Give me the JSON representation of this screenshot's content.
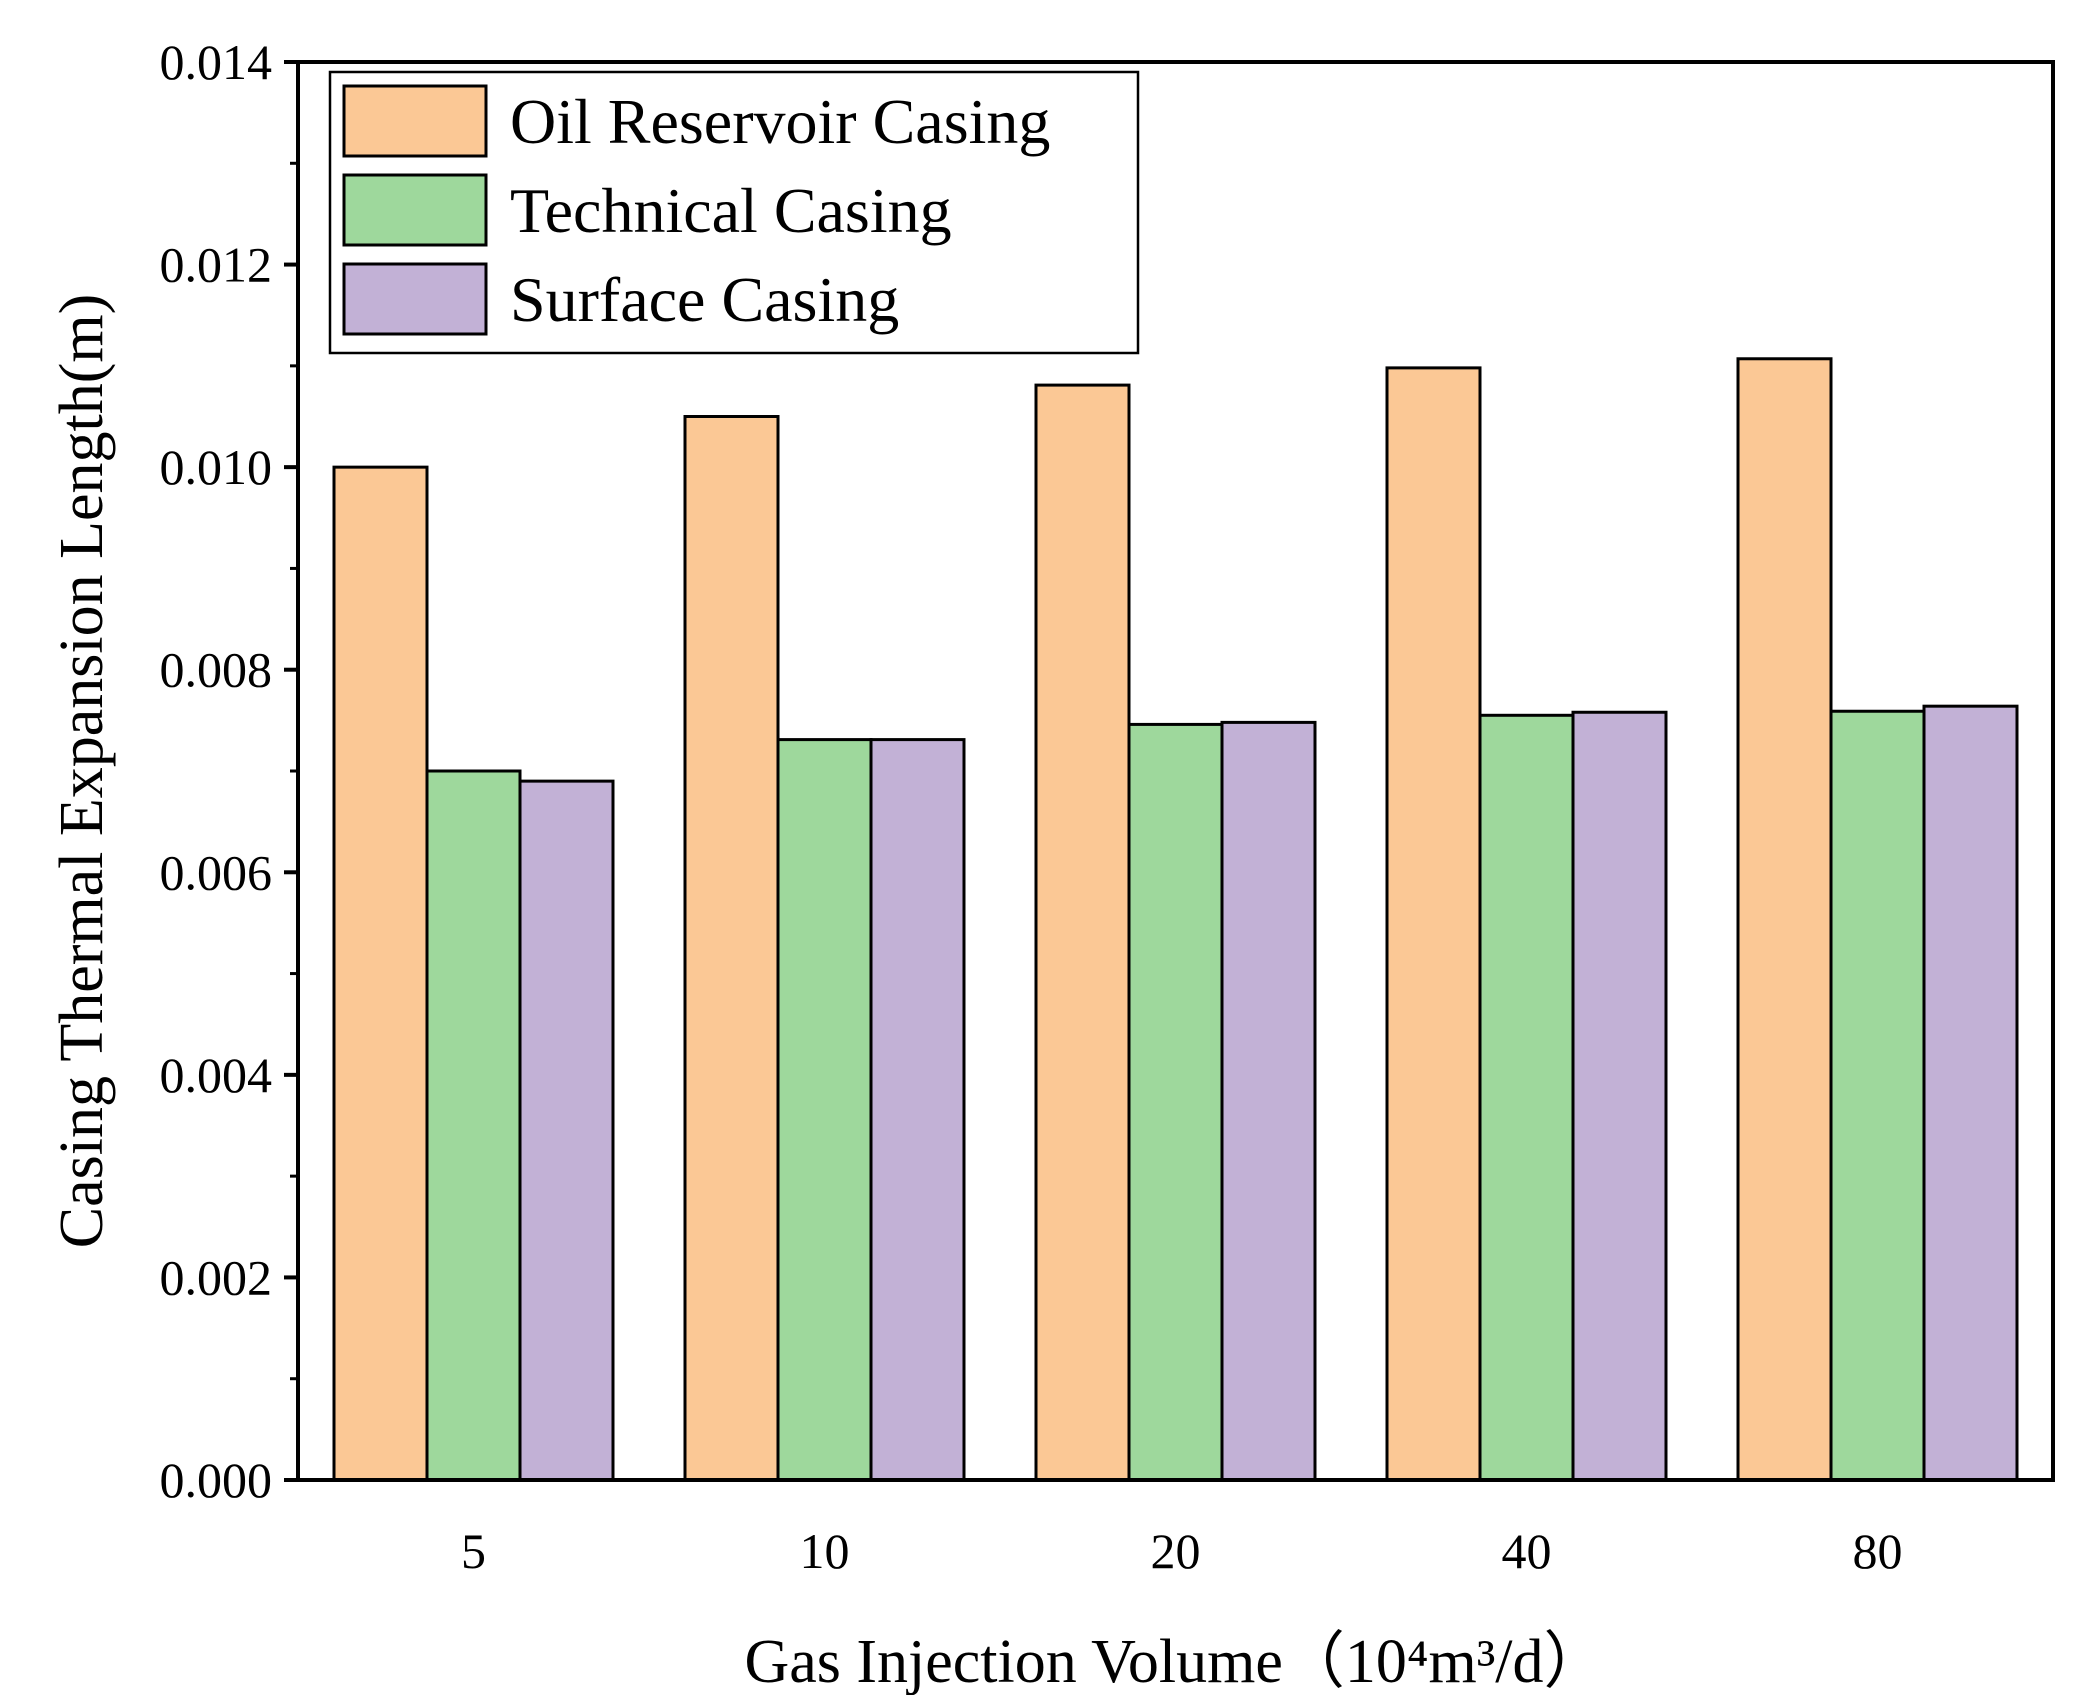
{
  "chart_data": {
    "type": "bar",
    "title": "",
    "xlabel": "Gas Injection Volume（10⁴m³/d）",
    "ylabel": "Casing Thermal Expansion Length(m)",
    "categories": [
      "5",
      "10",
      "20",
      "40",
      "80"
    ],
    "series": [
      {
        "name": "Oil Reservoir Casing",
        "color": "#FBC895",
        "values": [
          0.01,
          0.0105,
          0.01081,
          0.01098,
          0.01107
        ]
      },
      {
        "name": "Technical Casing",
        "color": "#9ED89C",
        "values": [
          0.007,
          0.00731,
          0.00746,
          0.00755,
          0.00759
        ]
      },
      {
        "name": "Surface Casing",
        "color": "#C2B1D6",
        "values": [
          0.0069,
          0.00731,
          0.00748,
          0.00758,
          0.00764
        ]
      }
    ],
    "ylim": [
      0,
      0.014
    ],
    "yticks": [
      "0.000",
      "0.002",
      "0.004",
      "0.006",
      "0.008",
      "0.010",
      "0.012",
      "0.014"
    ],
    "grid": false,
    "legend_position": "top-left"
  }
}
